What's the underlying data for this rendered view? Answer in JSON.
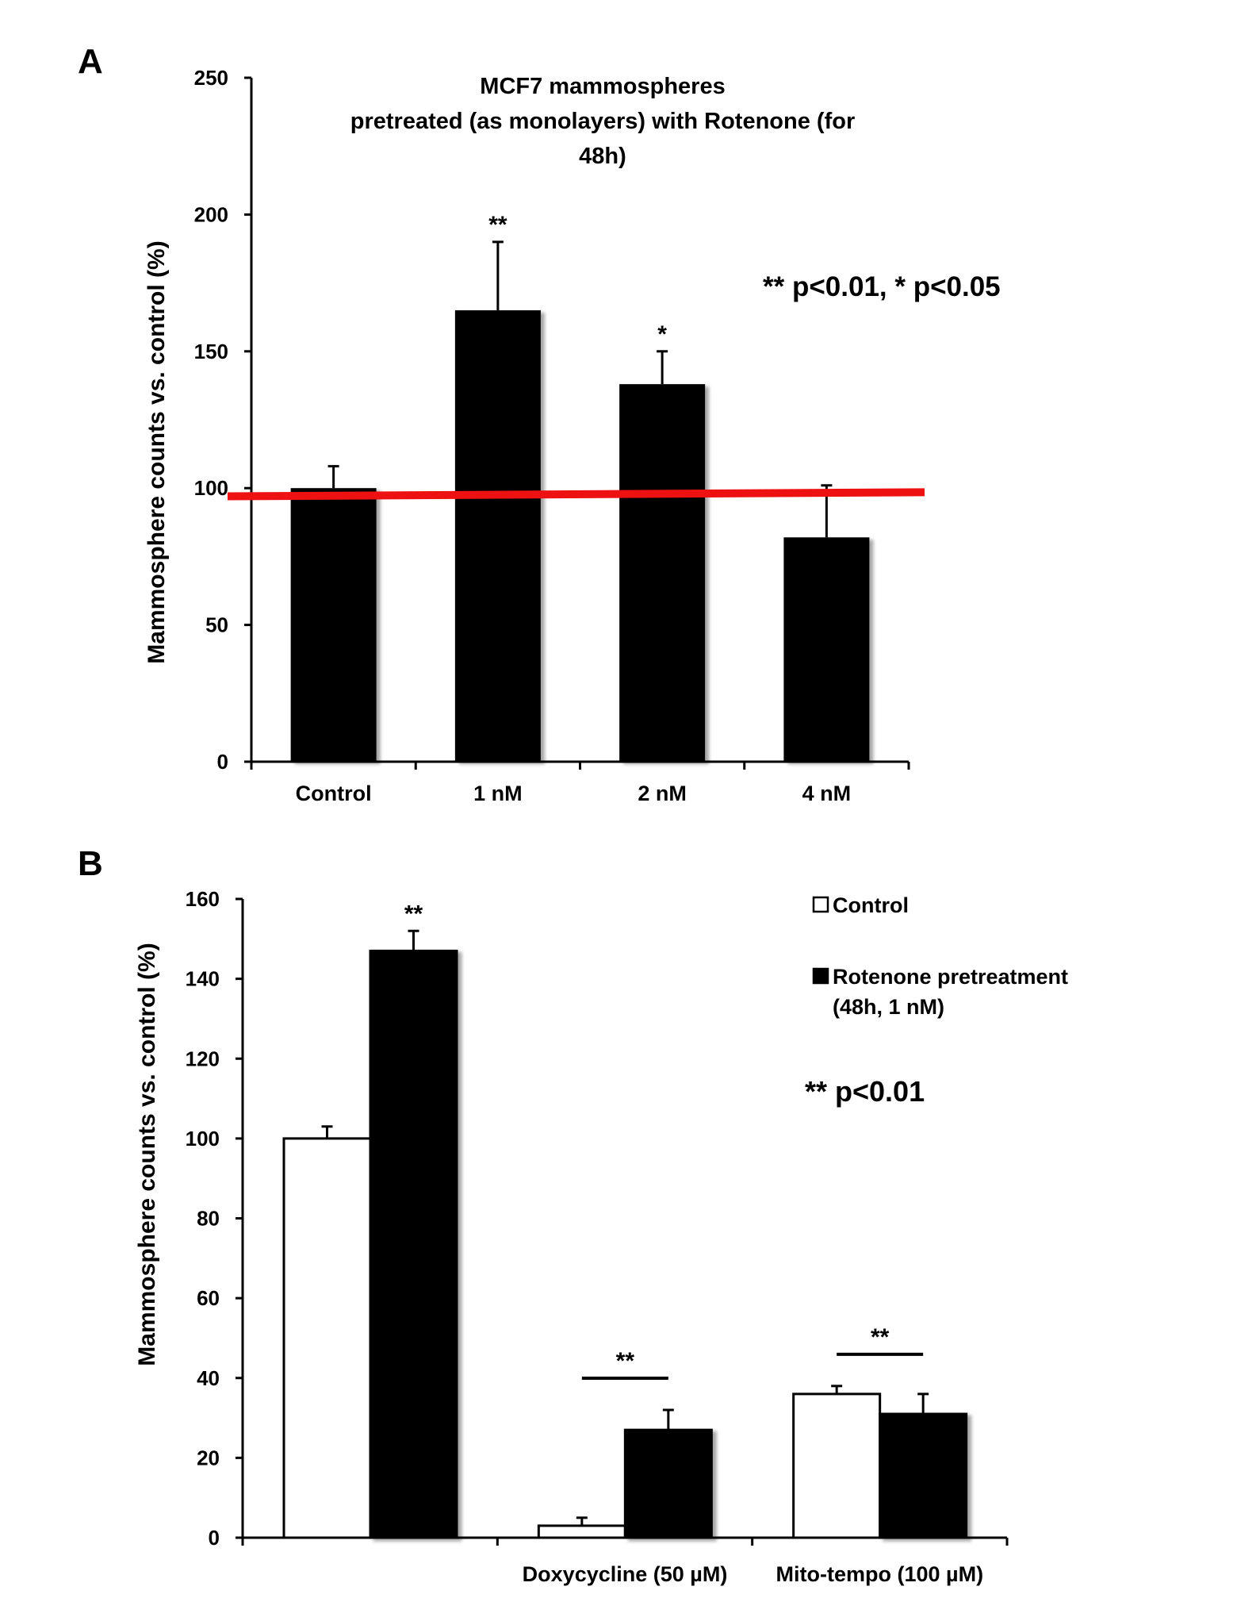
{
  "chart_data": [
    {
      "panel_label": "A",
      "type": "bar",
      "title": [
        "MCF7 mammospheres",
        "pretreated (as monolayers) with Rotenone (for",
        "48h)"
      ],
      "ylabel": "Mammosphere counts vs. control  (%)",
      "xlabel": "",
      "ylim": [
        0,
        250
      ],
      "yticks": [
        0,
        50,
        100,
        150,
        200,
        250
      ],
      "categories": [
        "Control",
        "1 nM",
        "2 nM",
        "4 nM"
      ],
      "values": [
        100,
        165,
        138,
        82
      ],
      "errors": [
        8,
        25,
        12,
        19
      ],
      "significance": [
        "",
        "**",
        "*",
        ""
      ],
      "bar_color": "#000000",
      "reference_line": {
        "y_start": 97,
        "y_end": 98.5,
        "color": "#ee1111"
      },
      "annotation": "** p<0.01, * p<0.05",
      "grid": false
    },
    {
      "panel_label": "B",
      "type": "bar",
      "ylabel": "Mammosphere counts vs. control (%)",
      "xlabel": "",
      "ylim": [
        0,
        160
      ],
      "yticks": [
        0,
        20,
        40,
        60,
        80,
        100,
        120,
        140,
        160
      ],
      "categories": [
        "",
        "Doxycycline (50 µM)",
        "Mito-tempo (100 µM)"
      ],
      "series": [
        {
          "name": "Control",
          "values": [
            100,
            3,
            36
          ],
          "errors": [
            3,
            2,
            2
          ],
          "color": "#ffffff"
        },
        {
          "name": "Rotenone pretreatment\n(48h, 1 nM)",
          "values": [
            147,
            27,
            31
          ],
          "errors": [
            5,
            5,
            5
          ],
          "color": "#000000"
        }
      ],
      "legend_lines": [
        [
          "Control"
        ],
        [
          "Rotenone pretreatment",
          "(48h, 1 nM)"
        ]
      ],
      "legend_position": "top-right",
      "significance": [
        "**",
        "**",
        "**"
      ],
      "annotation": "** p<0.01",
      "grid": false
    }
  ]
}
